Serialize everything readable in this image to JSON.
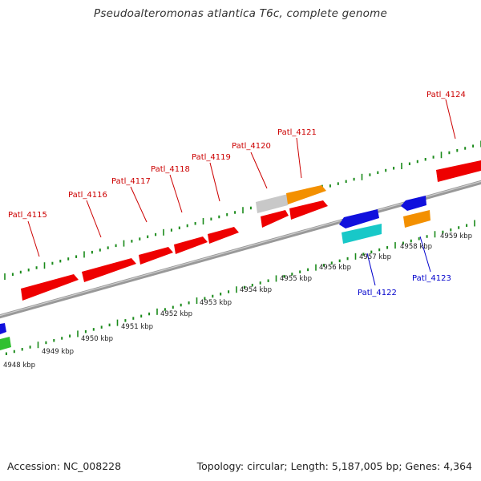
{
  "title": "Pseudoalteromonas atlantica T6c, complete genome",
  "footer": {
    "accession": "Accession: NC_008228",
    "summary": "Topology: circular; Length: 5,187,005 bp; Genes: 4,364"
  },
  "colors": {
    "forward_gene": "#ee0000",
    "reverse_gene": "#1010dd",
    "orange_gene": "#f39000",
    "gray_gene": "#c8c8c8",
    "cyan_gene": "#18c8c8",
    "green_gene": "#30c030",
    "tick": "#1a8a1a",
    "backbone": "#888888",
    "forward_label": "#cc0000",
    "reverse_label": "#0000cc"
  },
  "scale_labels": [
    "4948 kbp",
    "4949 kbp",
    "4950 kbp",
    "4951 kbp",
    "4952 kbp",
    "4953 kbp",
    "4954 kbp",
    "4955 kbp",
    "4956 kbp",
    "4957 kbp",
    "4958 kbp",
    "4959 kbp"
  ],
  "forward_genes": [
    {
      "label": "Patl_4115"
    },
    {
      "label": "Patl_4116"
    },
    {
      "label": "Patl_4117"
    },
    {
      "label": "Patl_4118"
    },
    {
      "label": "Patl_4119"
    },
    {
      "label": "Patl_4120"
    },
    {
      "label": "Patl_4121"
    },
    {
      "label": "Patl_4124"
    }
  ],
  "reverse_genes": [
    {
      "label": "Patl_4122"
    },
    {
      "label": "Patl_4123"
    }
  ]
}
